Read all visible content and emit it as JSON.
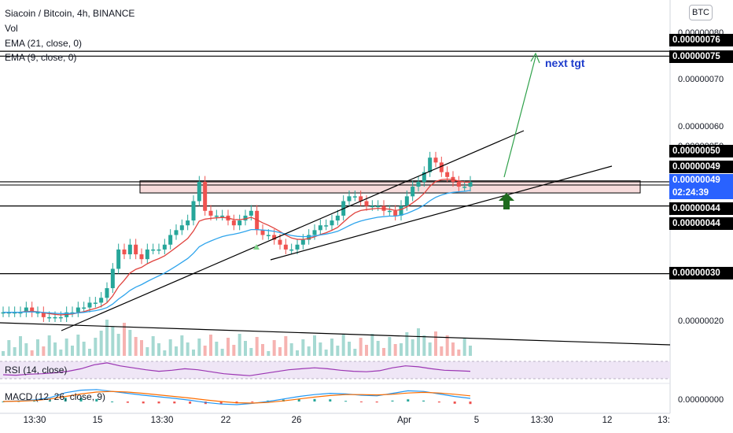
{
  "legend": {
    "symbol": "Siacoin / Bitcoin, 4h, BINANCE",
    "vol": "Vol",
    "ema21": "EMA (21, close, 0)",
    "ema9": "EMA (9, close, 0)"
  },
  "currency": "BTC",
  "price_tags": [
    {
      "text": "0.00000076",
      "style": "dark"
    },
    {
      "text": "0.00000075",
      "style": "dark"
    },
    {
      "text": "0.00000050",
      "style": "dark"
    },
    {
      "text": "0.00000049",
      "style": "dark"
    },
    {
      "text": "0.00000049",
      "style": "blue"
    },
    {
      "text": "02:24:39",
      "style": "blue"
    },
    {
      "text": "0.00000044",
      "style": "dark"
    },
    {
      "text": "0.00000044",
      "style": "dark"
    },
    {
      "text": "0.00000030",
      "style": "dark"
    }
  ],
  "annotation": "next tgt",
  "rsi_label": "RSI (14, close)",
  "macd_label": "MACD (12, 26, close, 9)",
  "chart_data": {
    "type": "candlestick",
    "title": "Siacoin / Bitcoin, 4h, BINANCE",
    "yticks": [
      "0.00000080",
      "0.00000070",
      "0.00000060",
      "0.00000050",
      "0.00000020",
      "0.00000000"
    ],
    "xticks": [
      "13:30",
      "15",
      "13:30",
      "22",
      "26",
      "Apr",
      "5",
      "13:30",
      "12",
      "13:"
    ],
    "horizontal_levels": [
      7.6e-07,
      7.5e-07,
      4.9e-07,
      4.4e-07,
      3e-07
    ],
    "resistance_zone": [
      4.67e-07,
      4.92e-07
    ],
    "close": [
      2.2e-07,
      2.2e-07,
      2.2e-07,
      2.2e-07,
      2.3e-07,
      2.2e-07,
      2.2e-07,
      2.1e-07,
      2.1e-07,
      2.1e-07,
      2.1e-07,
      2.2e-07,
      2.2e-07,
      2.3e-07,
      2.3e-07,
      2.4e-07,
      2.4e-07,
      2.5e-07,
      2.7e-07,
      3.1e-07,
      3.5e-07,
      3.4e-07,
      3.6e-07,
      3.4e-07,
      3.3e-07,
      3.5e-07,
      3.5e-07,
      3.5e-07,
      3.6e-07,
      3.8e-07,
      3.9e-07,
      4e-07,
      4.1e-07,
      4.5e-07,
      4.9e-07,
      4.3e-07,
      4.2e-07,
      4.2e-07,
      4.2e-07,
      4.1e-07,
      4e-07,
      4.1e-07,
      4.2e-07,
      4.3e-07,
      3.9e-07,
      3.8e-07,
      3.8e-07,
      3.7e-07,
      3.6e-07,
      3.5e-07,
      3.5e-07,
      3.6e-07,
      3.7e-07,
      3.8e-07,
      3.9e-07,
      4e-07,
      4e-07,
      4.1e-07,
      4.2e-07,
      4.5e-07,
      4.6e-07,
      4.6e-07,
      4.5e-07,
      4.4e-07,
      4.4e-07,
      4.4e-07,
      4.3e-07,
      4.3e-07,
      4.2e-07,
      4.4e-07,
      4.6e-07,
      4.8e-07,
      4.9e-07,
      5.1e-07,
      5.4e-07,
      5.3e-07,
      5.1e-07,
      5e-07,
      4.9e-07,
      4.8e-07,
      4.8e-07,
      4.9e-07
    ],
    "rsi": [
      48,
      47,
      49,
      50,
      52,
      55,
      60,
      68,
      72,
      66,
      62,
      58,
      55,
      57,
      60,
      58,
      54,
      50,
      48,
      46,
      50,
      54,
      58,
      60,
      62,
      60,
      57,
      55,
      54,
      56,
      62,
      66,
      64,
      60,
      57,
      56,
      55
    ],
    "macd": [
      0,
      0.2,
      0.5,
      1.2,
      2.8,
      3.6,
      3.8,
      3.2,
      2.6,
      2.0,
      1.5,
      1.0,
      0.4,
      -0.3,
      -0.8,
      -1.0,
      -0.6,
      0,
      0.8,
      1.6,
      2.2,
      2.6,
      2.4,
      2.0,
      1.8,
      2.6,
      3.4,
      3.2,
      2.4,
      1.6,
      1.0
    ],
    "signal": [
      0,
      0.1,
      0.3,
      0.8,
      1.6,
      2.4,
      3.0,
      3.2,
      3.0,
      2.6,
      2.1,
      1.6,
      1.1,
      0.5,
      0,
      -0.4,
      -0.5,
      -0.3,
      0.2,
      0.8,
      1.4,
      1.9,
      2.2,
      2.2,
      2.1,
      2.3,
      2.7,
      2.9,
      2.7,
      2.3,
      1.8
    ]
  }
}
